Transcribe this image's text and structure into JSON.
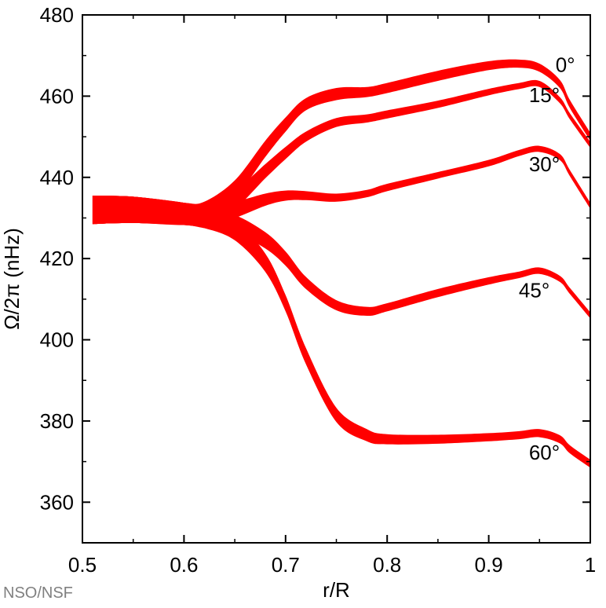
{
  "credit": "NSO/NSF",
  "chart_data": {
    "type": "area",
    "title": "",
    "xlabel": "r/R",
    "ylabel": "Ω/2π (nHz)",
    "xlim": [
      0.5,
      1.0
    ],
    "ylim": [
      350,
      480
    ],
    "xticks": [
      "0.5",
      "0.6",
      "0.7",
      "0.8",
      "0.9",
      "1"
    ],
    "yticks": [
      "360",
      "380",
      "400",
      "420",
      "440",
      "460",
      "480"
    ],
    "grid": false,
    "band_color": "#ff0000",
    "x": [
      0.51,
      0.55,
      0.6,
      0.62,
      0.65,
      0.68,
      0.7,
      0.72,
      0.75,
      0.78,
      0.8,
      0.85,
      0.9,
      0.93,
      0.95,
      0.97,
      0.98,
      1.0
    ],
    "series": [
      {
        "label": "0°",
        "center": [
          432,
          432,
          431,
          431.5,
          437,
          447,
          453,
          458,
          460.5,
          461,
          462,
          465,
          467.5,
          468,
          467,
          463,
          458,
          450
        ],
        "width": [
          7,
          6.5,
          5.5,
          5,
          4.5,
          4,
          3.5,
          3,
          3,
          2.5,
          2.5,
          2.5,
          2.2,
          2,
          2,
          2,
          2,
          2
        ]
      },
      {
        "label": "15°",
        "center": [
          432,
          432,
          431,
          431,
          434.5,
          441.5,
          446,
          450,
          453.5,
          454.5,
          455.5,
          458,
          461,
          462.5,
          463,
          459,
          455,
          448
        ],
        "width": [
          7,
          6.5,
          5.5,
          5,
          4.5,
          3.5,
          3,
          2.5,
          2.2,
          2,
          2,
          1.8,
          1.6,
          1.5,
          1.5,
          1.5,
          1.5,
          1.5
        ]
      },
      {
        "label": "30°",
        "center": [
          432,
          432,
          431,
          430.5,
          432,
          434.5,
          435.5,
          435.5,
          435,
          436,
          437.5,
          440.5,
          443.5,
          446,
          447,
          445,
          441,
          433
        ],
        "width": [
          7,
          6.5,
          5.5,
          5,
          4,
          3,
          2.5,
          2.2,
          2,
          1.8,
          1.8,
          1.6,
          1.6,
          1.5,
          1.5,
          1.5,
          1.5,
          1.5
        ]
      },
      {
        "label": "45°",
        "center": [
          432,
          432,
          431,
          430,
          428.5,
          424.5,
          420,
          414,
          408.5,
          407,
          408,
          411.5,
          414.5,
          416,
          417,
          415,
          412,
          406
        ],
        "width": [
          7,
          6.5,
          5.5,
          5,
          4.5,
          4,
          3.5,
          3,
          2.5,
          2.2,
          2,
          2,
          1.8,
          1.6,
          1.6,
          1.5,
          1.5,
          1.5
        ]
      },
      {
        "label": "60°",
        "center": [
          432,
          432,
          431,
          430,
          427,
          419,
          409,
          396,
          381.5,
          376.5,
          375.5,
          375.5,
          376,
          376.5,
          377,
          375.5,
          373,
          369.5
        ],
        "width": [
          7,
          6.5,
          5.5,
          5,
          5,
          4.5,
          4,
          4,
          3.5,
          3,
          2.5,
          2.2,
          2,
          2,
          2,
          2,
          2,
          2
        ]
      }
    ],
    "series_labels": [
      {
        "text": "0°",
        "x": 0.985,
        "y": 466
      },
      {
        "text": "15°",
        "x": 0.97,
        "y": 458.5
      },
      {
        "text": "30°",
        "x": 0.97,
        "y": 441.5
      },
      {
        "text": "45°",
        "x": 0.96,
        "y": 410.5
      },
      {
        "text": "60°",
        "x": 0.97,
        "y": 370.5
      }
    ]
  }
}
